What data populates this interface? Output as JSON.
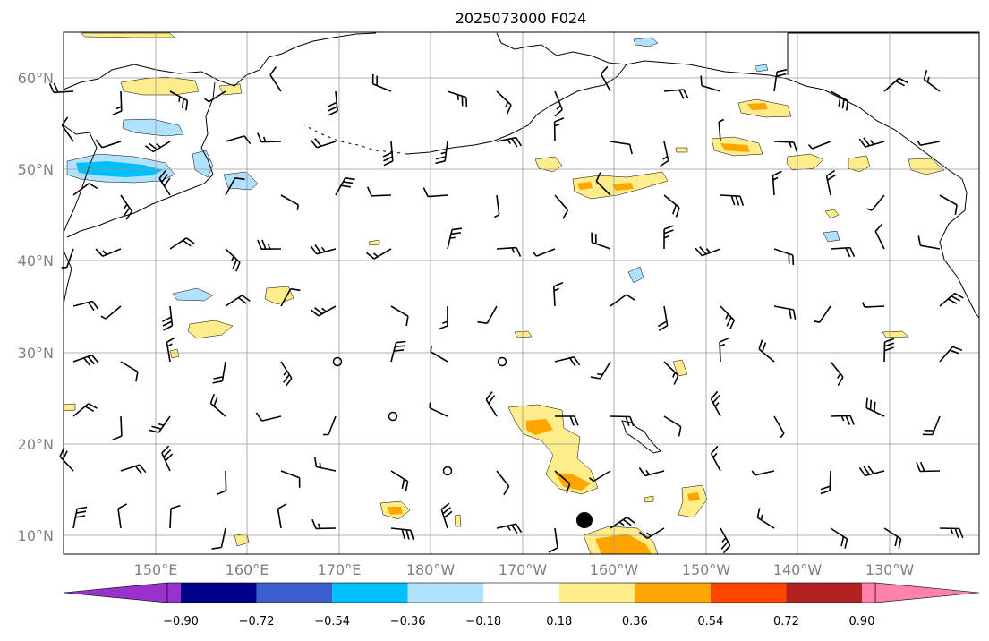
{
  "title": "2025073000 F024",
  "map": {
    "lat_labels": [
      "60°N",
      "50°N",
      "40°N",
      "30°N",
      "20°N",
      "10°N"
    ],
    "lon_labels": [
      "150°E",
      "160°E",
      "170°E",
      "180°W",
      "170°W",
      "160°W",
      "150°W",
      "140°W",
      "130°W"
    ],
    "grid": true,
    "land_color": "#ffffff",
    "coast_color": "#000000"
  },
  "colorbar": {
    "labels": [
      "−0.90",
      "−0.72",
      "−0.54",
      "−0.36",
      "−0.18",
      "0.18",
      "0.36",
      "0.54",
      "0.72",
      "0.90"
    ],
    "colors": [
      "#9932CC",
      "#00008B",
      "#3A5FCD",
      "#00BFFF",
      "#B0E2FF",
      "#FFFFFF",
      "#FFEC8B",
      "#FFA500",
      "#FF4500",
      "#B22222",
      "#FF82AB"
    ],
    "extend": "both"
  },
  "storm_marker": {
    "lon": -163,
    "lat": 11.7,
    "color": "#000000"
  }
}
